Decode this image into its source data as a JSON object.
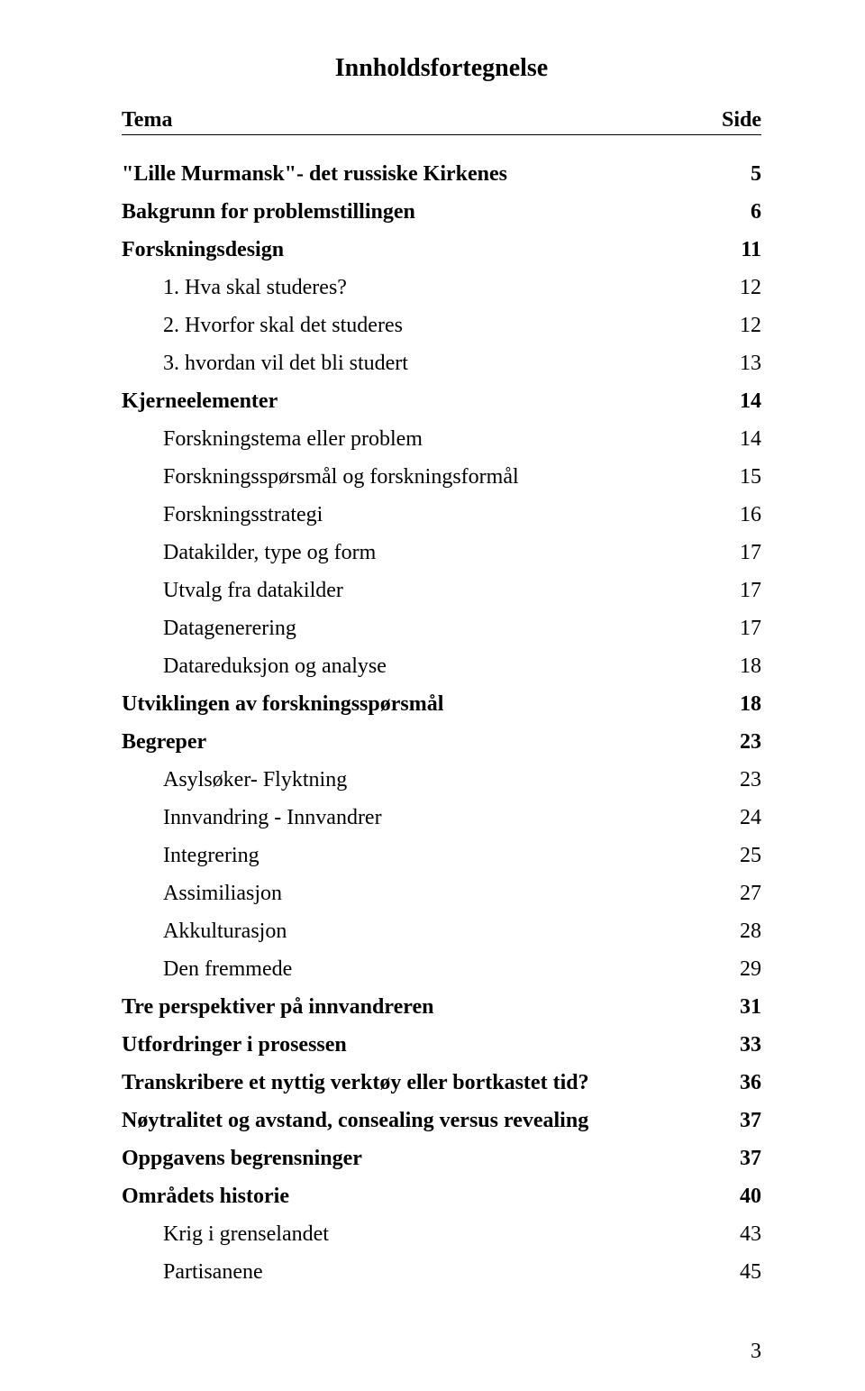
{
  "title": "Innholdsfortegnelse",
  "header": {
    "left": "Tema",
    "right": "Side"
  },
  "page_number": "3",
  "colors": {
    "bg": "#ffffff",
    "text": "#000000",
    "rule": "#000000"
  },
  "toc": [
    {
      "label": "\"Lille Murmansk\"- det russiske Kirkenes",
      "page": "5",
      "indent": 0,
      "bold": true
    },
    {
      "label": "Bakgrunn for problemstillingen",
      "page": "6",
      "indent": 0,
      "bold": true
    },
    {
      "label": "Forskningsdesign",
      "page": "11",
      "indent": 0,
      "bold": true
    },
    {
      "label": "1. Hva skal studeres?",
      "page": "12",
      "indent": 1,
      "bold": false
    },
    {
      "label": "2. Hvorfor skal det studeres",
      "page": "12",
      "indent": 1,
      "bold": false
    },
    {
      "label": "3. hvordan vil det bli studert",
      "page": "13",
      "indent": 1,
      "bold": false
    },
    {
      "label": "Kjerneelementer",
      "page": "14",
      "indent": 0,
      "bold": true
    },
    {
      "label": "Forskningstema eller problem",
      "page": "14",
      "indent": 1,
      "bold": false
    },
    {
      "label": "Forskningsspørsmål og forskningsformål",
      "page": "15",
      "indent": 1,
      "bold": false
    },
    {
      "label": "Forskningsstrategi",
      "page": "16",
      "indent": 1,
      "bold": false
    },
    {
      "label": "Datakilder, type og form",
      "page": "17",
      "indent": 1,
      "bold": false
    },
    {
      "label": "Utvalg fra datakilder",
      "page": "17",
      "indent": 1,
      "bold": false
    },
    {
      "label": "Datagenerering",
      "page": "17",
      "indent": 1,
      "bold": false
    },
    {
      "label": "Datareduksjon og analyse",
      "page": "18",
      "indent": 1,
      "bold": false
    },
    {
      "label": "Utviklingen av forskningsspørsmål",
      "page": "18",
      "indent": 0,
      "bold": true
    },
    {
      "label": "Begreper",
      "page": "23",
      "indent": 0,
      "bold": true
    },
    {
      "label": "Asylsøker- Flyktning",
      "page": "23",
      "indent": 1,
      "bold": false
    },
    {
      "label": "Innvandring - Innvandrer",
      "page": "24",
      "indent": 1,
      "bold": false
    },
    {
      "label": "Integrering",
      "page": "25",
      "indent": 1,
      "bold": false
    },
    {
      "label": "Assimiliasjon",
      "page": "27",
      "indent": 1,
      "bold": false
    },
    {
      "label": "Akkulturasjon",
      "page": "28",
      "indent": 1,
      "bold": false
    },
    {
      "label": "Den fremmede",
      "page": "29",
      "indent": 1,
      "bold": false
    },
    {
      "label": "Tre perspektiver på innvandreren",
      "page": "31",
      "indent": 0,
      "bold": true
    },
    {
      "label": "Utfordringer i prosessen",
      "page": "33",
      "indent": 0,
      "bold": true
    },
    {
      "label": "Transkribere et nyttig verktøy eller bortkastet tid?",
      "page": "36",
      "indent": 0,
      "bold": true
    },
    {
      "label": "Nøytralitet og avstand, consealing versus revealing",
      "page": "37",
      "indent": 0,
      "bold": true
    },
    {
      "label": "Oppgavens begrensninger",
      "page": "37",
      "indent": 0,
      "bold": true
    },
    {
      "label": "Områdets historie",
      "page": "40",
      "indent": 0,
      "bold": true
    },
    {
      "label": "Krig i grenselandet",
      "page": "43",
      "indent": 1,
      "bold": false
    },
    {
      "label": "Partisanene",
      "page": "45",
      "indent": 1,
      "bold": false
    }
  ]
}
